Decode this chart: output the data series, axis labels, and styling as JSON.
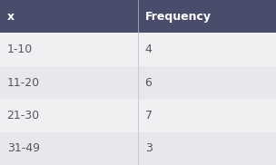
{
  "header_labels": [
    "x",
    "Frequency"
  ],
  "rows": [
    [
      "1-10",
      "4"
    ],
    [
      "11-20",
      "6"
    ],
    [
      "21-30",
      "7"
    ],
    [
      "31-49",
      "3"
    ]
  ],
  "header_bg_color": "#494d6b",
  "header_text_color": "#ffffff",
  "row_bg_colors": [
    "#f0f0f2",
    "#e8e8ec"
  ],
  "row_text_color": "#555560",
  "col_split": 0.5,
  "header_fontsize": 9,
  "row_fontsize": 9,
  "header_font_weight": "bold",
  "row_font_weight": "normal",
  "divider_color": "#bbbbcc",
  "fig_width": 3.04,
  "fig_height": 1.82,
  "dpi": 100
}
